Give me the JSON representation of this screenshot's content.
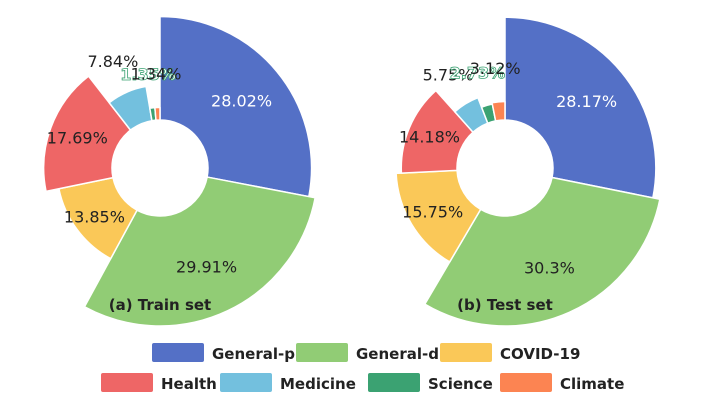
{
  "chart_data": [
    {
      "type": "pie",
      "variant": "rose-donut",
      "title": "(a) Train set",
      "categories": [
        "General-p",
        "General-d",
        "COVID-19",
        "Health",
        "Medicine",
        "Science",
        "Climate"
      ],
      "values": [
        28.02,
        29.91,
        13.85,
        17.69,
        7.84,
        1.35,
        1.34
      ],
      "labels": [
        "28.02%",
        "29.91%",
        "13.85%",
        "17.69%",
        "7.84%",
        "1.35%",
        "1.34%"
      ]
    },
    {
      "type": "pie",
      "variant": "rose-donut",
      "title": "(b) Test set",
      "categories": [
        "General-p",
        "General-d",
        "COVID-19",
        "Health",
        "Medicine",
        "Science",
        "Climate"
      ],
      "values": [
        28.17,
        30.3,
        15.75,
        14.18,
        5.75,
        2.73,
        3.12
      ],
      "labels": [
        "28.17%",
        "30.3%",
        "15.75%",
        "14.18%",
        "5.75%",
        "2.73%",
        "3.12%"
      ]
    }
  ],
  "legend": [
    {
      "name": "General-p",
      "color": "#5470c6"
    },
    {
      "name": "General-d",
      "color": "#91cc75"
    },
    {
      "name": "COVID-19",
      "color": "#fac858"
    },
    {
      "name": "Health",
      "color": "#ee6666"
    },
    {
      "name": "Medicine",
      "color": "#73c0de"
    },
    {
      "name": "Science",
      "color": "#3ba272"
    },
    {
      "name": "Climate",
      "color": "#fc8452"
    }
  ]
}
